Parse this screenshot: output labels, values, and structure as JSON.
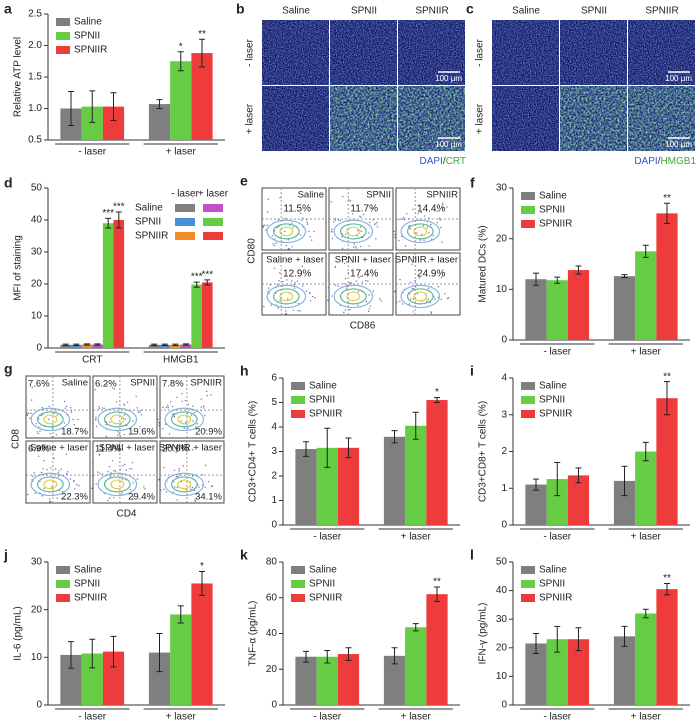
{
  "chart_data": [
    {
      "type": "bar",
      "label": "a",
      "ylabel": "Relative ATP level",
      "categories": [
        "- laser",
        "+ laser"
      ],
      "ylim": [
        0.5,
        2.5
      ],
      "yticks": [
        0.5,
        {
          "value": 1,
          "label": "1.0"
        },
        1.5,
        {
          "value": 2,
          "label": "2.0"
        },
        2.5
      ],
      "series": [
        {
          "name": "Saline",
          "color": "#7f7f7f",
          "values": [
            1.0,
            1.07
          ],
          "errors": [
            0.27,
            0.07
          ],
          "stars": [
            null,
            null
          ]
        },
        {
          "name": "SPNII",
          "color": "#66cc44",
          "values": [
            1.03,
            1.75
          ],
          "errors": [
            0.25,
            0.15
          ],
          "stars": [
            null,
            "*"
          ]
        },
        {
          "name": "SPNIIR",
          "color": "#ee3b3b",
          "values": [
            1.03,
            1.88
          ],
          "errors": [
            0.22,
            0.22
          ],
          "stars": [
            null,
            "**"
          ]
        }
      ]
    },
    {
      "type": "image",
      "label": "b",
      "columns": [
        "Saline",
        "SPNII",
        "SPNIIR"
      ],
      "rows": [
        "- laser",
        "+ laser"
      ],
      "scale": "100 μm",
      "stain": [
        {
          "text": "DAPI",
          "color": "#2f55d4"
        },
        {
          "text": "/",
          "color": "#333333"
        },
        {
          "text": "CRT",
          "color": "#3aa83a"
        }
      ]
    },
    {
      "type": "image",
      "label": "c",
      "columns": [
        "Saline",
        "SPNII",
        "SPNIIR"
      ],
      "rows": [
        "- laser",
        "+ laser"
      ],
      "scale": "100 μm",
      "stain": [
        {
          "text": "DAPI",
          "color": "#2f55d4"
        },
        {
          "text": "/",
          "color": "#333333"
        },
        {
          "text": "HMGB1",
          "color": "#3aa83a"
        }
      ]
    },
    {
      "type": "bar",
      "label": "d",
      "ylabel": "MFI of staining",
      "categories": [
        "CRT",
        "HMGB1"
      ],
      "ylim": [
        0,
        50
      ],
      "yticks": [
        0,
        10,
        20,
        30,
        40,
        50
      ],
      "legend_columns": [
        "- laser",
        "+ laser"
      ],
      "legend_rows": [
        "Saline",
        "SPNII",
        "SPNIIR"
      ],
      "series": [
        {
          "color": "#7f7f7f",
          "values": [
            1.0,
            1.0
          ],
          "errors": [
            0.2,
            0.2
          ],
          "stars": [
            null,
            null
          ]
        },
        {
          "color": "#4a90d9",
          "values": [
            1.0,
            1.0
          ],
          "errors": [
            0.2,
            0.2
          ],
          "stars": [
            null,
            null
          ]
        },
        {
          "color": "#f28c28",
          "values": [
            1.1,
            1.0
          ],
          "errors": [
            0.2,
            0.2
          ],
          "stars": [
            null,
            null
          ]
        },
        {
          "color": "#c04fc8",
          "values": [
            1.1,
            1.1
          ],
          "errors": [
            0.2,
            0.2
          ],
          "stars": [
            null,
            null
          ]
        },
        {
          "color": "#66cc44",
          "values": [
            39,
            19.8
          ],
          "errors": [
            1.5,
            0.8
          ],
          "stars": [
            "***",
            "***"
          ]
        },
        {
          "color": "#ee3b3b",
          "values": [
            40,
            20.5
          ],
          "errors": [
            2.5,
            0.8
          ],
          "stars": [
            "***",
            "***"
          ]
        }
      ]
    },
    {
      "type": "flow",
      "label": "e",
      "xlabel": "CD86",
      "ylabel": "CD80",
      "panels": [
        {
          "title": "Saline",
          "labels": [
            "11.5%"
          ]
        },
        {
          "title": "SPNII",
          "labels": [
            "11.7%"
          ]
        },
        {
          "title": "SPNIIR",
          "labels": [
            "14.4%"
          ]
        },
        {
          "title": "Saline + laser",
          "labels": [
            "12.9%"
          ]
        },
        {
          "title": "SPNII + laser",
          "labels": [
            "17.4%"
          ]
        },
        {
          "title": "SPNIIR + laser",
          "labels": [
            "24.9%"
          ]
        }
      ]
    },
    {
      "type": "bar",
      "label": "f",
      "ylabel": "Matured DCs (%)",
      "categories": [
        "- laser",
        "+ laser"
      ],
      "ylim": [
        0,
        30
      ],
      "yticks": [
        0,
        10,
        20,
        30
      ],
      "series": [
        {
          "name": "Saline",
          "color": "#7f7f7f",
          "values": [
            12,
            12.6
          ],
          "errors": [
            1.2,
            0.3
          ],
          "stars": [
            null,
            null
          ]
        },
        {
          "name": "SPNII",
          "color": "#66cc44",
          "values": [
            11.8,
            17.5
          ],
          "errors": [
            0.6,
            1.2
          ],
          "stars": [
            null,
            null
          ]
        },
        {
          "name": "SPNIIR",
          "color": "#ee3b3b",
          "values": [
            13.8,
            25
          ],
          "errors": [
            0.8,
            2
          ],
          "stars": [
            null,
            "**"
          ]
        }
      ]
    },
    {
      "type": "flow",
      "label": "g",
      "xlabel": "CD4",
      "ylabel": "CD8",
      "panels": [
        {
          "title": "Saline",
          "labels": [
            "7.6%",
            "18.7%"
          ]
        },
        {
          "title": "SPNII",
          "labels": [
            "6.2%",
            "19.6%"
          ]
        },
        {
          "title": "SPNIIR",
          "labels": [
            "7.8%",
            "20.9%"
          ]
        },
        {
          "title": "Saline + laser",
          "labels": [
            "6.9%",
            "22.3%"
          ]
        },
        {
          "title": "SPNII + laser",
          "labels": [
            "11.4%",
            "29.4%"
          ]
        },
        {
          "title": "SPNIIR + laser",
          "labels": [
            "20.6%",
            "34.1%"
          ]
        }
      ]
    },
    {
      "type": "bar",
      "label": "h",
      "ylabel": "CD3+CD4+ T cells (%)",
      "categories": [
        "- laser",
        "+ laser"
      ],
      "ylim": [
        0,
        6
      ],
      "yticks": [
        0,
        1,
        2,
        3,
        4,
        5,
        6
      ],
      "series": [
        {
          "name": "Saline",
          "color": "#7f7f7f",
          "values": [
            3.1,
            3.6
          ],
          "errors": [
            0.3,
            0.25
          ],
          "stars": [
            null,
            null
          ]
        },
        {
          "name": "SPNII",
          "color": "#66cc44",
          "values": [
            3.15,
            4.05
          ],
          "errors": [
            0.8,
            0.55
          ],
          "stars": [
            null,
            null
          ]
        },
        {
          "name": "SPNIIR",
          "color": "#ee3b3b",
          "values": [
            3.15,
            5.1
          ],
          "errors": [
            0.4,
            0.1
          ],
          "stars": [
            null,
            "*"
          ]
        }
      ]
    },
    {
      "type": "bar",
      "label": "i",
      "ylabel": "CD3+CD8+ T cells (%)",
      "categories": [
        "- laser",
        "+ laser"
      ],
      "ylim": [
        0,
        4
      ],
      "yticks": [
        0,
        1,
        2,
        3,
        4
      ],
      "series": [
        {
          "name": "Saline",
          "color": "#7f7f7f",
          "values": [
            1.1,
            1.2
          ],
          "errors": [
            0.15,
            0.4
          ],
          "stars": [
            null,
            null
          ]
        },
        {
          "name": "SPNII",
          "color": "#66cc44",
          "values": [
            1.25,
            2.0
          ],
          "errors": [
            0.45,
            0.25
          ],
          "stars": [
            null,
            null
          ]
        },
        {
          "name": "SPNIIR",
          "color": "#ee3b3b",
          "values": [
            1.35,
            3.45
          ],
          "errors": [
            0.2,
            0.45
          ],
          "stars": [
            null,
            "**"
          ]
        }
      ]
    },
    {
      "type": "bar",
      "label": "j",
      "ylabel": "IL-6 (pg/mL)",
      "categories": [
        "- laser",
        "+ laser"
      ],
      "ylim": [
        0,
        30
      ],
      "yticks": [
        0,
        10,
        20,
        30
      ],
      "series": [
        {
          "name": "Saline",
          "color": "#7f7f7f",
          "values": [
            10.5,
            11
          ],
          "errors": [
            2.8,
            4
          ],
          "stars": [
            null,
            null
          ]
        },
        {
          "name": "SPNII",
          "color": "#66cc44",
          "values": [
            10.8,
            19
          ],
          "errors": [
            3,
            1.8
          ],
          "stars": [
            null,
            null
          ]
        },
        {
          "name": "SPNIIR",
          "color": "#ee3b3b",
          "values": [
            11.2,
            25.5
          ],
          "errors": [
            3.2,
            2.5
          ],
          "stars": [
            null,
            "*"
          ]
        }
      ]
    },
    {
      "type": "bar",
      "label": "k",
      "ylabel": "TNF-α (pg/mL)",
      "categories": [
        "- laser",
        "+ laser"
      ],
      "ylim": [
        0,
        80
      ],
      "yticks": [
        0,
        20,
        40,
        60,
        80
      ],
      "series": [
        {
          "name": "Saline",
          "color": "#7f7f7f",
          "values": [
            27,
            27.5
          ],
          "errors": [
            3,
            4.5
          ],
          "stars": [
            null,
            null
          ]
        },
        {
          "name": "SPNII",
          "color": "#66cc44",
          "values": [
            27,
            43.5
          ],
          "errors": [
            3.5,
            2
          ],
          "stars": [
            null,
            null
          ]
        },
        {
          "name": "SPNIIR",
          "color": "#ee3b3b",
          "values": [
            28.5,
            62
          ],
          "errors": [
            3.5,
            4
          ],
          "stars": [
            null,
            "**"
          ]
        }
      ]
    },
    {
      "type": "bar",
      "label": "l",
      "ylabel": "IFN-γ (pg/mL)",
      "categories": [
        "- laser",
        "+ laser"
      ],
      "ylim": [
        0,
        50
      ],
      "yticks": [
        0,
        10,
        20,
        30,
        40,
        50
      ],
      "series": [
        {
          "name": "Saline",
          "color": "#7f7f7f",
          "values": [
            21.5,
            24
          ],
          "errors": [
            3.5,
            3.5
          ],
          "stars": [
            null,
            null
          ]
        },
        {
          "name": "SPNII",
          "color": "#66cc44",
          "values": [
            23,
            32
          ],
          "errors": [
            4.5,
            1.5
          ],
          "stars": [
            null,
            null
          ]
        },
        {
          "name": "SPNIIR",
          "color": "#ee3b3b",
          "values": [
            23,
            40.5
          ],
          "errors": [
            4,
            2
          ],
          "stars": [
            null,
            "**"
          ]
        }
      ]
    }
  ]
}
